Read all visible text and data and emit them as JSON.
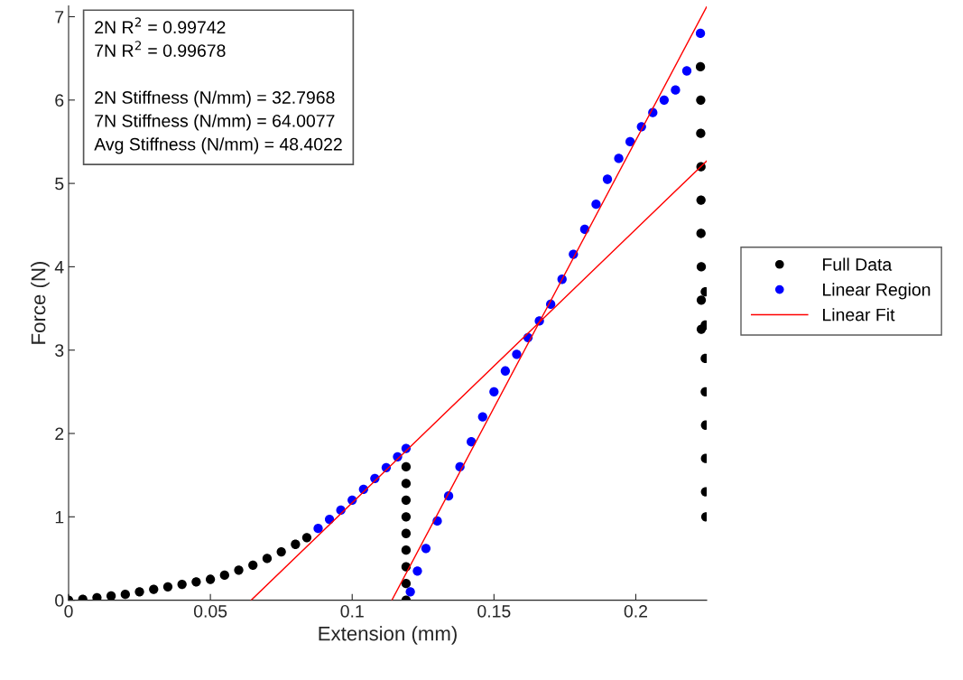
{
  "chart_data": {
    "type": "scatter",
    "xlabel": "Extension (mm)",
    "ylabel": "Force (N)",
    "xlim": [
      0,
      0.225
    ],
    "ylim": [
      0,
      7.13
    ],
    "xticks": [
      0,
      0.05,
      0.1,
      0.15,
      0.2
    ],
    "yticks": [
      0,
      1,
      2,
      3,
      4,
      5,
      6,
      7
    ],
    "grid": false,
    "legend": "right",
    "annotations": [
      "2N R$^{2}$ = 0.99742",
      "7N R$^{2}$ = 0.99678",
      "2N Stiffness (N/mm) = 32.7968",
      "7N Stiffness (N/mm) = 64.0077",
      "Avg Stiffness (N/mm) = 48.4022"
    ],
    "series": [
      {
        "name": "Full Data",
        "color": "#000000",
        "marker": "circle",
        "x": [
          0,
          0.005,
          0.01,
          0.015,
          0.02,
          0.025,
          0.03,
          0.035,
          0.04,
          0.045,
          0.05,
          0.055,
          0.06,
          0.065,
          0.07,
          0.075,
          0.08,
          0.084,
          0.119,
          0.119,
          0.119,
          0.119,
          0.119,
          0.119,
          0.119,
          0.119,
          0.119,
          0.2228,
          0.2229,
          0.2229,
          0.223,
          0.223,
          0.223,
          0.2231,
          0.2231,
          0.2231,
          0.2245,
          0.2245,
          0.2245,
          0.2245,
          0.2246,
          0.2246,
          0.2246,
          0.2247
        ],
        "values": [
          0,
          0.01,
          0.03,
          0.05,
          0.07,
          0.1,
          0.13,
          0.16,
          0.19,
          0.22,
          0.25,
          0.3,
          0.36,
          0.42,
          0.5,
          0.58,
          0.67,
          0.75,
          1.6,
          1.4,
          1.2,
          1.0,
          0.8,
          0.6,
          0.4,
          0.2,
          0.0,
          6.4,
          6.0,
          5.6,
          5.2,
          4.8,
          4.4,
          4.0,
          3.6,
          3.25,
          3.7,
          3.3,
          2.9,
          2.5,
          2.1,
          1.7,
          1.3,
          1.0
        ]
      },
      {
        "name": "Linear Region",
        "color": "#0000ff",
        "marker": "circle",
        "x": [
          0.088,
          0.092,
          0.096,
          0.1,
          0.104,
          0.108,
          0.112,
          0.116,
          0.119,
          0.1205,
          0.123,
          0.126,
          0.13,
          0.134,
          0.138,
          0.142,
          0.146,
          0.15,
          0.154,
          0.158,
          0.162,
          0.166,
          0.17,
          0.174,
          0.178,
          0.182,
          0.186,
          0.19,
          0.194,
          0.198,
          0.202,
          0.206,
          0.21,
          0.214,
          0.218,
          0.2228
        ],
        "values": [
          0.86,
          0.97,
          1.08,
          1.2,
          1.33,
          1.46,
          1.59,
          1.72,
          1.82,
          0.1,
          0.35,
          0.62,
          0.95,
          1.25,
          1.6,
          1.9,
          2.2,
          2.5,
          2.75,
          2.95,
          3.15,
          3.35,
          3.55,
          3.85,
          4.15,
          4.45,
          4.75,
          5.05,
          5.3,
          5.5,
          5.68,
          5.85,
          6.0,
          6.12,
          6.35,
          6.8
        ]
      },
      {
        "name": "Linear Fit",
        "type": "line",
        "marker": "none",
        "color": "#ff0000",
        "x": [
          0.0644,
          0.225
        ],
        "values": [
          0,
          5.27
        ]
      },
      {
        "type": "line",
        "marker": "none",
        "color": "#ff0000",
        "x": [
          0.114,
          0.225
        ],
        "values": [
          0,
          7.12
        ]
      }
    ]
  }
}
